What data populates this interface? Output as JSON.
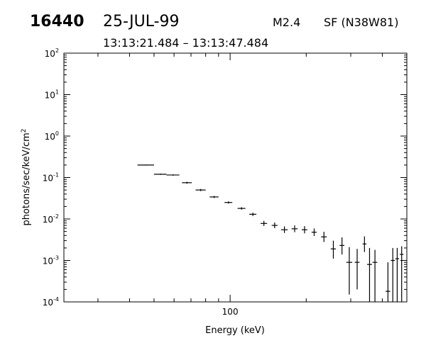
{
  "header": {
    "event_id": "16440",
    "date": "25-JUL-99",
    "flare_class": "M2.4",
    "flare_info": "SF (N38W81)",
    "time_range": "13:13:21.484 – 13:13:47.484"
  },
  "chart_data": {
    "type": "scatter",
    "title": "",
    "xlabel": "Energy (keV)",
    "ylabel": "photons/sec/keV/cm²",
    "x_scale": "log",
    "y_scale": "log",
    "xlim": [
      22,
      500
    ],
    "ylim": [
      0.0001,
      100
    ],
    "x_tick_labels": [
      "100"
    ],
    "y_tick_labels": [
      {
        "base": "10",
        "exp": "-4"
      },
      {
        "base": "10",
        "exp": "-3"
      },
      {
        "base": "10",
        "exp": "-2"
      },
      {
        "base": "10",
        "exp": "-1"
      },
      {
        "base": "10",
        "exp": "0"
      },
      {
        "base": "10",
        "exp": "1"
      },
      {
        "base": "10",
        "exp": "2"
      }
    ],
    "points": [
      {
        "x": 46.5,
        "xlo": 43.0,
        "xhi": 50.0,
        "y": 0.2,
        "ylo": 0.195,
        "yhi": 0.205
      },
      {
        "x": 53.0,
        "xlo": 50.0,
        "xhi": 56.0,
        "y": 0.12,
        "ylo": 0.116,
        "yhi": 0.124
      },
      {
        "x": 59.5,
        "xlo": 56.0,
        "xhi": 63.0,
        "y": 0.115,
        "ylo": 0.111,
        "yhi": 0.119
      },
      {
        "x": 67.5,
        "xlo": 64.5,
        "xhi": 70.5,
        "y": 0.075,
        "ylo": 0.071,
        "yhi": 0.079
      },
      {
        "x": 76.5,
        "xlo": 73.0,
        "xhi": 80.0,
        "y": 0.05,
        "ylo": 0.047,
        "yhi": 0.053
      },
      {
        "x": 86.5,
        "xlo": 83.0,
        "xhi": 90.0,
        "y": 0.034,
        "ylo": 0.032,
        "yhi": 0.036
      },
      {
        "x": 98.5,
        "xlo": 95.0,
        "xhi": 102.0,
        "y": 0.025,
        "ylo": 0.0235,
        "yhi": 0.0265
      },
      {
        "x": 111.0,
        "xlo": 107.0,
        "xhi": 115.0,
        "y": 0.018,
        "ylo": 0.0168,
        "yhi": 0.0192
      },
      {
        "x": 123.0,
        "xlo": 119.0,
        "xhi": 127.0,
        "y": 0.013,
        "ylo": 0.0118,
        "yhi": 0.0142
      },
      {
        "x": 136.0,
        "xlo": 132.0,
        "xhi": 140.0,
        "y": 0.0078,
        "ylo": 0.0068,
        "yhi": 0.009
      },
      {
        "x": 150.0,
        "xlo": 146.0,
        "xhi": 154.0,
        "y": 0.007,
        "ylo": 0.006,
        "yhi": 0.0082
      },
      {
        "x": 164.0,
        "xlo": 159.0,
        "xhi": 169.0,
        "y": 0.0055,
        "ylo": 0.0046,
        "yhi": 0.0066
      },
      {
        "x": 180.0,
        "xlo": 175.0,
        "xhi": 185.0,
        "y": 0.0058,
        "ylo": 0.0048,
        "yhi": 0.007
      },
      {
        "x": 197.0,
        "xlo": 192.0,
        "xhi": 202.0,
        "y": 0.0055,
        "ylo": 0.0045,
        "yhi": 0.0067
      },
      {
        "x": 215.0,
        "xlo": 210.0,
        "xhi": 220.0,
        "y": 0.0048,
        "ylo": 0.0039,
        "yhi": 0.0059
      },
      {
        "x": 235.0,
        "xlo": 229.0,
        "xhi": 241.0,
        "y": 0.0037,
        "ylo": 0.0028,
        "yhi": 0.0049
      },
      {
        "x": 256.0,
        "xlo": 250.0,
        "xhi": 262.0,
        "y": 0.0019,
        "ylo": 0.0011,
        "yhi": 0.003
      },
      {
        "x": 277.0,
        "xlo": 271.0,
        "xhi": 283.0,
        "y": 0.0023,
        "ylo": 0.0014,
        "yhi": 0.0036
      },
      {
        "x": 296.0,
        "xlo": 288.0,
        "xhi": 304.0,
        "y": 0.0009,
        "ylo": 0.00015,
        "yhi": 0.0021
      },
      {
        "x": 318.0,
        "xlo": 311.0,
        "xhi": 325.0,
        "y": 0.0009,
        "ylo": 0.0002,
        "yhi": 0.0019
      },
      {
        "x": 340.0,
        "xlo": 334.0,
        "xhi": 346.0,
        "y": 0.0025,
        "ylo": 0.0016,
        "yhi": 0.0038
      },
      {
        "x": 356.0,
        "xlo": 348.0,
        "xhi": 364.0,
        "y": 0.0008,
        "ylo": 0.0001,
        "yhi": 0.002
      },
      {
        "x": 374.0,
        "xlo": 366.0,
        "xhi": 382.0,
        "y": 0.0009,
        "ylo": 0.0001,
        "yhi": 0.0018
      },
      {
        "x": 421.0,
        "xlo": 412.0,
        "xhi": 430.0,
        "y": 0.00018,
        "ylo": 0.0001,
        "yhi": 0.0009
      },
      {
        "x": 440.0,
        "xlo": 432.0,
        "xhi": 448.0,
        "y": 0.001,
        "ylo": 0.0001,
        "yhi": 0.002
      },
      {
        "x": 458.0,
        "xlo": 450.0,
        "xhi": 466.0,
        "y": 0.0011,
        "ylo": 0.0001,
        "yhi": 0.002
      },
      {
        "x": 477.0,
        "xlo": 469.0,
        "xhi": 485.0,
        "y": 0.0014,
        "ylo": 0.0001,
        "yhi": 0.0022
      }
    ]
  }
}
